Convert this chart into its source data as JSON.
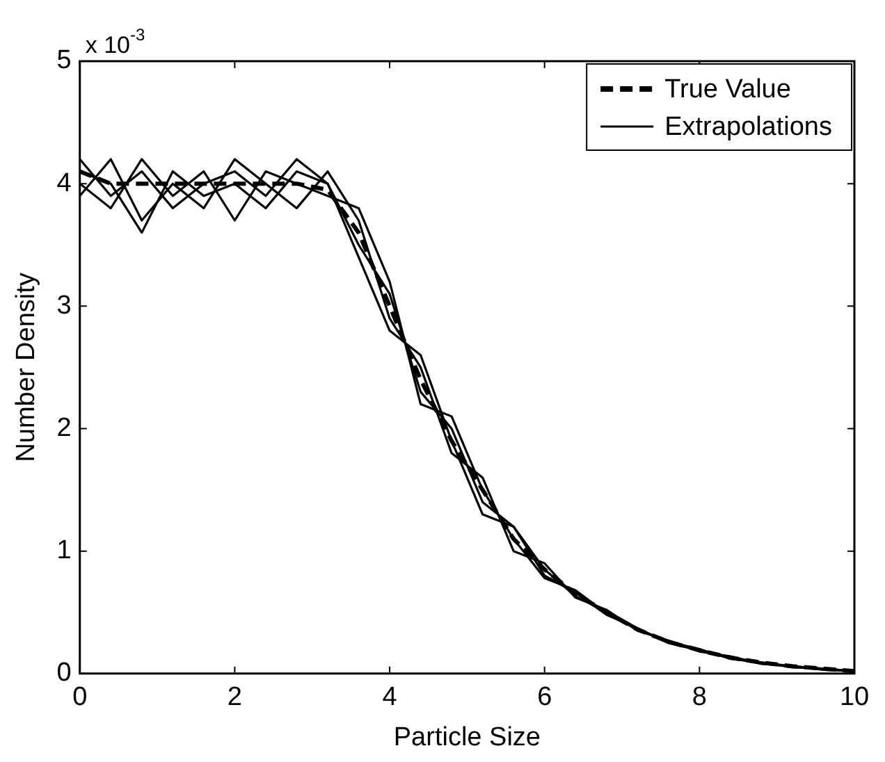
{
  "chart_data": {
    "type": "line",
    "xlabel": "Particle Size",
    "ylabel": "Number Density",
    "annotations": [
      "x 10$^{-3}$"
    ],
    "x": [
      0,
      0.4,
      0.8,
      1.2,
      1.6,
      2.0,
      2.4,
      2.8,
      3.2,
      3.6,
      4.0,
      4.4,
      4.8,
      5.2,
      5.6,
      6.0,
      6.4,
      6.8,
      7.2,
      7.6,
      8.0,
      8.4,
      8.8,
      9.2,
      9.6,
      10.0
    ],
    "xlim": [
      0,
      10
    ],
    "xticks": [
      0,
      2,
      4,
      6,
      8,
      10
    ],
    "ylim": [
      0,
      5
    ],
    "yticks": [
      0,
      1,
      2,
      3,
      4,
      5
    ],
    "grid": false,
    "legend": "top right",
    "marker": "none",
    "series": [
      {
        "name": "True Value",
        "color": "#000000",
        "line_style": "dashed",
        "values": [
          4.1,
          4.0,
          4.0,
          4.0,
          4.0,
          4.0,
          4.0,
          4.0,
          3.95,
          3.6,
          3.0,
          2.4,
          1.9,
          1.5,
          1.1,
          0.85,
          0.65,
          0.5,
          0.36,
          0.26,
          0.19,
          0.13,
          0.09,
          0.06,
          0.04,
          0.02
        ]
      },
      {
        "name": "Extrapolations",
        "color": "#000000",
        "line_style": "solid",
        "values": [
          4.2,
          3.9,
          4.1,
          3.8,
          4.0,
          4.1,
          3.9,
          4.2,
          4.0,
          3.5,
          3.1,
          2.3,
          2.0,
          1.4,
          1.2,
          0.8,
          0.66,
          0.48,
          0.37,
          0.25,
          0.19,
          0.13,
          0.09,
          0.06,
          0.04,
          0.02
        ]
      },
      {
        "color": "#000000",
        "line_style": "solid",
        "values": [
          3.9,
          4.2,
          3.7,
          4.0,
          3.8,
          4.2,
          4.0,
          3.8,
          4.1,
          3.7,
          2.9,
          2.5,
          1.8,
          1.6,
          1.0,
          0.9,
          0.62,
          0.52,
          0.35,
          0.27,
          0.18,
          0.14,
          0.08,
          0.06,
          0.04,
          0.02
        ]
      },
      {
        "color": "#000000",
        "line_style": "solid",
        "values": [
          4.0,
          3.8,
          4.2,
          3.9,
          4.1,
          3.7,
          4.1,
          4.0,
          3.9,
          3.8,
          3.2,
          2.2,
          2.1,
          1.5,
          1.1,
          0.78,
          0.68,
          0.49,
          0.36,
          0.26,
          0.2,
          0.12,
          0.09,
          0.05,
          0.04,
          0.02
        ]
      },
      {
        "color": "#000000",
        "line_style": "solid",
        "values": [
          4.1,
          4.0,
          3.6,
          4.1,
          3.9,
          4.0,
          3.8,
          4.1,
          4.0,
          3.4,
          2.8,
          2.6,
          1.9,
          1.3,
          1.2,
          0.85,
          0.63,
          0.51,
          0.37,
          0.25,
          0.19,
          0.13,
          0.08,
          0.06,
          0.03,
          0.02
        ]
      }
    ]
  }
}
